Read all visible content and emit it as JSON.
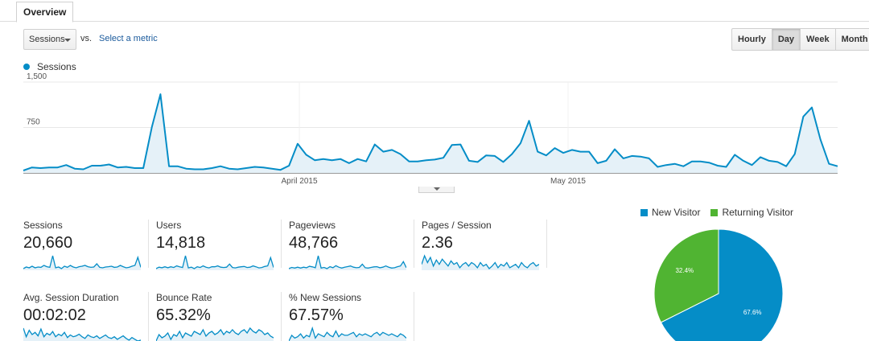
{
  "tabs": [
    {
      "label": "Overview"
    }
  ],
  "toolbar": {
    "metric": "Sessions",
    "vs": "vs.",
    "select_metric": "Select a metric",
    "granularity": [
      "Hourly",
      "Day",
      "Week",
      "Month"
    ],
    "active_granularity": "Day"
  },
  "chart_data": [
    {
      "type": "area",
      "series": [
        {
          "name": "Sessions",
          "color": "#058dc7",
          "values": [
            40,
            90,
            80,
            90,
            90,
            130,
            70,
            60,
            120,
            120,
            140,
            90,
            100,
            80,
            80,
            760,
            1300,
            110,
            110,
            70,
            60,
            60,
            80,
            110,
            70,
            60,
            80,
            100,
            90,
            70,
            50,
            120,
            480,
            300,
            210,
            230,
            210,
            230,
            160,
            230,
            190,
            470,
            350,
            380,
            310,
            190,
            190,
            210,
            220,
            250,
            460,
            470,
            200,
            180,
            290,
            280,
            180,
            310,
            490,
            860,
            350,
            290,
            410,
            330,
            380,
            350,
            350,
            160,
            200,
            390,
            240,
            280,
            270,
            240,
            100,
            130,
            150,
            110,
            190,
            190,
            170,
            120,
            100,
            300,
            200,
            130,
            260,
            200,
            180,
            110,
            310,
            930,
            1080,
            550,
            150,
            110
          ]
        }
      ],
      "x_labels": [
        "April 2015",
        "May 2015"
      ],
      "y_ticks": [
        "1,500",
        "750"
      ],
      "ylim": [
        0,
        1500
      ],
      "grid": true
    },
    {
      "type": "pie",
      "series": [
        {
          "name": "New Visitor",
          "color": "#058dc7",
          "value": 67.6,
          "label": "67.6%"
        },
        {
          "name": "Returning Visitor",
          "color": "#50b432",
          "value": 32.4,
          "label": "32.4%"
        }
      ]
    }
  ],
  "stats": [
    {
      "label": "Sessions",
      "value": "20,660",
      "spark": [
        40,
        50,
        45,
        55,
        45,
        50,
        48,
        60,
        52,
        48,
        120,
        45,
        50,
        40,
        55,
        48,
        60,
        50,
        45,
        52,
        55,
        60,
        52,
        48,
        50,
        70,
        48,
        45,
        50,
        52,
        55,
        48,
        50,
        60,
        52,
        45,
        48,
        55,
        60,
        110,
        48
      ]
    },
    {
      "label": "Users",
      "value": "14,818",
      "spark": [
        40,
        48,
        45,
        50,
        45,
        50,
        46,
        55,
        50,
        46,
        110,
        44,
        48,
        40,
        50,
        46,
        55,
        48,
        44,
        50,
        50,
        55,
        48,
        46,
        48,
        65,
        46,
        44,
        48,
        50,
        52,
        46,
        48,
        55,
        50,
        44,
        46,
        52,
        55,
        100,
        46
      ]
    },
    {
      "label": "Pageviews",
      "value": "48,766",
      "spark": [
        42,
        50,
        46,
        52,
        46,
        52,
        48,
        58,
        54,
        48,
        130,
        46,
        50,
        42,
        55,
        48,
        62,
        52,
        46,
        52,
        56,
        60,
        52,
        48,
        50,
        72,
        48,
        46,
        50,
        54,
        55,
        48,
        52,
        60,
        52,
        46,
        48,
        55,
        60,
        90,
        48
      ]
    },
    {
      "label": "Pages / Session",
      "value": "2.36",
      "spark": [
        70,
        80,
        72,
        78,
        68,
        75,
        70,
        76,
        72,
        68,
        74,
        70,
        72,
        66,
        70,
        72,
        68,
        72,
        70,
        66,
        72,
        68,
        70,
        65,
        68,
        72,
        66,
        70,
        68,
        72,
        66,
        68,
        70,
        66,
        72,
        68,
        66,
        70,
        72,
        68,
        70
      ]
    },
    {
      "label": "Avg. Session Duration",
      "value": "00:02:02",
      "spark": [
        90,
        70,
        85,
        75,
        80,
        72,
        88,
        70,
        78,
        74,
        82,
        70,
        76,
        72,
        80,
        68,
        74,
        70,
        72,
        76,
        70,
        66,
        74,
        70,
        68,
        72,
        66,
        70,
        74,
        68,
        66,
        70,
        64,
        68,
        72,
        66,
        62,
        68,
        64,
        60,
        62
      ]
    },
    {
      "label": "Bounce Rate",
      "value": "65.32%",
      "spark": [
        60,
        68,
        64,
        66,
        70,
        62,
        68,
        66,
        72,
        64,
        70,
        68,
        66,
        72,
        70,
        68,
        74,
        66,
        70,
        72,
        68,
        70,
        74,
        68,
        72,
        70,
        74,
        70,
        68,
        72,
        74,
        70,
        76,
        72,
        70,
        74,
        72,
        68,
        70,
        66,
        64
      ]
    },
    {
      "label": "% New Sessions",
      "value": "67.57%",
      "spark": [
        62,
        70,
        66,
        68,
        72,
        66,
        70,
        68,
        80,
        66,
        72,
        70,
        68,
        74,
        70,
        68,
        76,
        68,
        72,
        70,
        70,
        72,
        74,
        68,
        72,
        70,
        72,
        70,
        68,
        72,
        74,
        70,
        74,
        72,
        70,
        72,
        70,
        68,
        72,
        70,
        66
      ]
    }
  ]
}
